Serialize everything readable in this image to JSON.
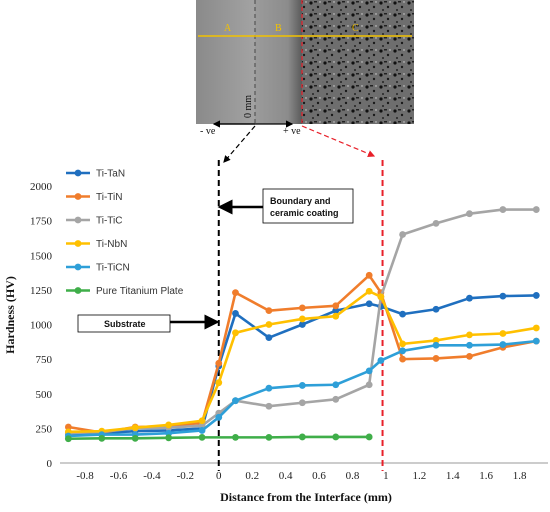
{
  "chart_data": {
    "type": "line",
    "xlabel": "Distance from the Interface (mm)",
    "ylabel": "Hardness (HV)",
    "xlim": [
      -0.95,
      1.97
    ],
    "ylim": [
      0,
      2000
    ],
    "xticks": [
      -0.8,
      -0.6,
      -0.4,
      -0.2,
      0,
      0.2,
      0.4,
      0.6,
      0.8,
      1,
      1.2,
      1.4,
      1.6,
      1.8
    ],
    "xtick_labels": [
      "-0.8",
      "-0.6",
      "-0.4",
      "-0.2",
      "0",
      "0.2",
      "0.4",
      "0.6",
      "0.8",
      "1",
      "1.2",
      "1.4",
      "1.6",
      "1.8"
    ],
    "yticks": [
      0,
      250,
      500,
      750,
      1000,
      1250,
      1500,
      1750,
      2000
    ],
    "ytick_labels": [
      "0",
      "250",
      "500",
      "750",
      "1000",
      "1250",
      "1500",
      "1750",
      "2000"
    ],
    "grid": false,
    "legend_position": "top-left",
    "vlines": [
      {
        "x": 0,
        "color": "#000000",
        "style": "dashed"
      },
      {
        "x": 0.98,
        "color": "#e8202a",
        "style": "dashed"
      }
    ],
    "series": [
      {
        "name": "Ti-TaN",
        "color": "#1f6fbf",
        "x": [
          -0.9,
          -0.7,
          -0.5,
          -0.3,
          -0.1,
          0,
          0.1,
          0.3,
          0.5,
          0.7,
          0.9,
          0.97,
          1.1,
          1.3,
          1.5,
          1.7,
          1.9
        ],
        "y": [
          210,
          215,
          230,
          235,
          250,
          700,
          1080,
          905,
          1000,
          1100,
          1150,
          1130,
          1075,
          1110,
          1190,
          1205,
          1210
        ]
      },
      {
        "name": "Ti-TiN",
        "color": "#f07d2c",
        "x": [
          -0.9,
          -0.7,
          -0.5,
          -0.3,
          -0.1,
          0,
          0.1,
          0.3,
          0.5,
          0.7,
          0.9,
          0.97,
          1.1,
          1.3,
          1.5,
          1.7,
          1.9
        ],
        "y": [
          260,
          220,
          260,
          265,
          290,
          720,
          1230,
          1100,
          1120,
          1135,
          1355,
          1230,
          750,
          755,
          770,
          835,
          880
        ]
      },
      {
        "name": "Ti-TiC",
        "color": "#a5a5a5",
        "x": [
          -0.9,
          -0.7,
          -0.5,
          -0.3,
          -0.1,
          0,
          0.1,
          0.3,
          0.5,
          0.7,
          0.9,
          0.97,
          1.1,
          1.3,
          1.5,
          1.7,
          1.9
        ],
        "y": [
          215,
          225,
          250,
          255,
          270,
          360,
          450,
          410,
          435,
          460,
          565,
          1200,
          1650,
          1730,
          1800,
          1830,
          1830
        ]
      },
      {
        "name": "Ti-NbN",
        "color": "#ffc000",
        "x": [
          -0.9,
          -0.7,
          -0.5,
          -0.3,
          -0.1,
          0,
          0.1,
          0.3,
          0.5,
          0.7,
          0.9,
          0.97,
          1.1,
          1.3,
          1.5,
          1.7,
          1.9
        ],
        "y": [
          225,
          230,
          255,
          275,
          305,
          580,
          940,
          1000,
          1040,
          1060,
          1240,
          1200,
          860,
          885,
          925,
          935,
          975
        ]
      },
      {
        "name": "Ti-TiCN",
        "color": "#2e9fd8",
        "x": [
          -0.9,
          -0.7,
          -0.5,
          -0.3,
          -0.1,
          0,
          0.1,
          0.3,
          0.5,
          0.7,
          0.9,
          0.97,
          1.1,
          1.3,
          1.5,
          1.7,
          1.9
        ],
        "y": [
          195,
          205,
          205,
          215,
          235,
          330,
          450,
          540,
          560,
          565,
          665,
          740,
          810,
          850,
          850,
          855,
          880
        ]
      },
      {
        "name": "Pure Titanium Plate",
        "color": "#3fae49",
        "x": [
          -0.9,
          -0.7,
          -0.5,
          -0.3,
          -0.1,
          0.1,
          0.3,
          0.5,
          0.7,
          0.9
        ],
        "y": [
          175,
          178,
          178,
          182,
          185,
          185,
          185,
          188,
          188,
          188
        ]
      }
    ],
    "annotations": [
      {
        "text": "Boundary and",
        "text2": "ceramic coating"
      },
      {
        "text": "Substrate"
      }
    ]
  },
  "micrograph": {
    "regions": [
      "A",
      "B",
      "C"
    ],
    "scale_label": "0 mm",
    "neg_label": "- ve",
    "pos_label": "+ ve"
  }
}
